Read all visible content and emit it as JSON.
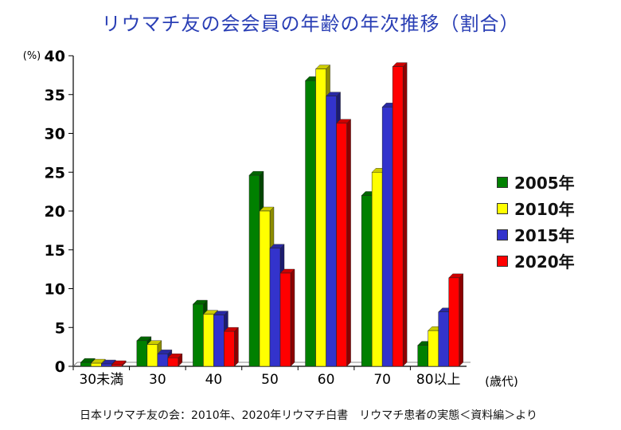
{
  "chart_data": {
    "type": "bar",
    "title": "リウマチ友の会会員の年齢の年次推移（割合）",
    "ylabel": "(%)",
    "xlabel": "(歳代)",
    "ylim": [
      0,
      40
    ],
    "yticks": [
      0,
      5,
      10,
      15,
      20,
      25,
      30,
      35,
      40
    ],
    "categories": [
      "30未満",
      "30",
      "40",
      "50",
      "60",
      "70",
      "80以上"
    ],
    "series": [
      {
        "name": "2005年",
        "color": "#008000",
        "values": [
          0.5,
          3.3,
          8.0,
          24.6,
          36.8,
          22.0,
          2.7
        ]
      },
      {
        "name": "2010年",
        "color": "#ffff00",
        "values": [
          0.4,
          2.8,
          6.7,
          20.0,
          38.3,
          25.0,
          4.6
        ]
      },
      {
        "name": "2015年",
        "color": "#3333cc",
        "values": [
          0.3,
          1.6,
          6.6,
          15.2,
          34.8,
          33.4,
          7.0
        ]
      },
      {
        "name": "2020年",
        "color": "#ff0000",
        "values": [
          0.2,
          1.1,
          4.5,
          12.0,
          31.3,
          38.6,
          11.4
        ]
      }
    ],
    "legend_position": "right",
    "grid": false
  },
  "source": "日本リウマチ友の会：2010年、2020年リウマチ白書　リウマチ患者の実態＜資料編＞より"
}
